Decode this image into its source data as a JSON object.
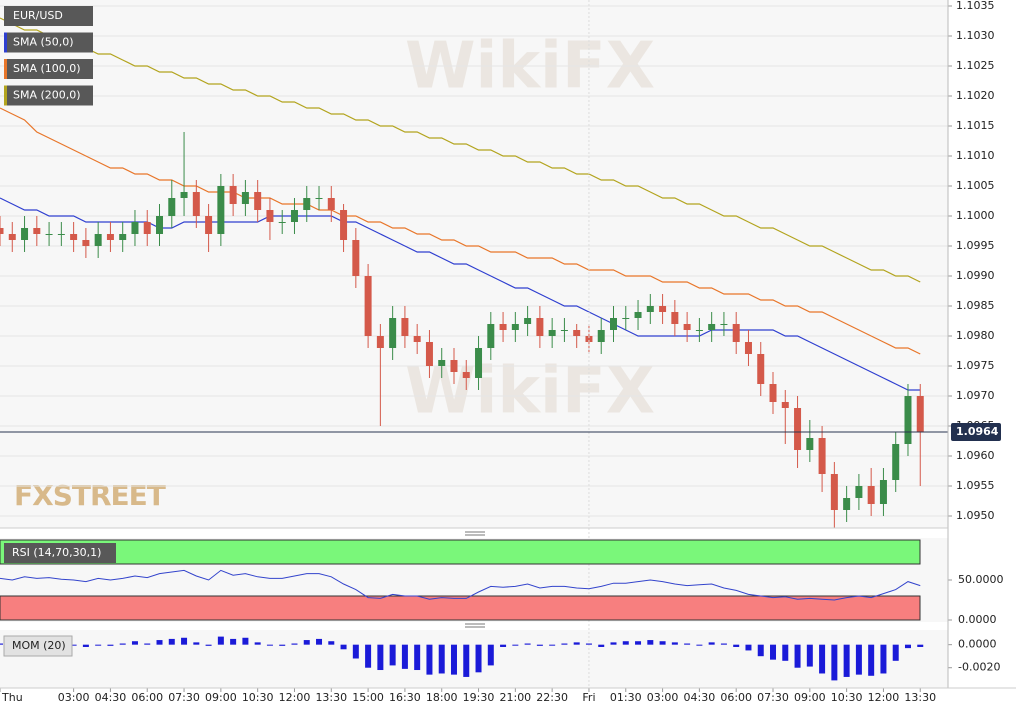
{
  "chart_data": {
    "type": "candlestick",
    "symbol": "EUR/USD",
    "categories": [
      "Thu",
      null,
      null,
      null,
      null,
      null,
      "03:00",
      null,
      null,
      "04:30",
      null,
      null,
      "06:00",
      null,
      null,
      "07:30",
      null,
      null,
      "09:00",
      null,
      null,
      "10:30",
      null,
      null,
      "12:00",
      null,
      null,
      "13:30",
      null,
      null,
      "15:00",
      null,
      null,
      "16:30",
      null,
      null,
      "18:00",
      null,
      null,
      "19:30",
      null,
      null,
      "21:00",
      null,
      null,
      "22:30",
      null,
      null,
      "Fri",
      null,
      null,
      "01:30",
      null,
      null,
      "03:00",
      null,
      null,
      "04:30",
      null,
      null,
      "06:00",
      null,
      null,
      "07:30",
      null,
      null,
      "09:00",
      null,
      null,
      "10:30",
      null,
      null,
      "12:00",
      null,
      null,
      "13:30"
    ],
    "open": [
      1.0998,
      1.0997,
      1.0996,
      1.0998,
      1.0997,
      1.0997,
      1.0997,
      1.0996,
      1.0995,
      1.0997,
      1.0996,
      1.0997,
      1.0999,
      1.0997,
      1.1,
      1.1003,
      1.1004,
      1.1,
      1.0997,
      1.1005,
      1.1002,
      1.1004,
      1.1001,
      1.0999,
      1.0999,
      1.1001,
      1.1003,
      1.1003,
      1.1001,
      1.0996,
      1.099,
      1.098,
      1.0978,
      1.0983,
      1.098,
      1.0979,
      1.0975,
      1.0976,
      1.0974,
      1.0973,
      1.0978,
      1.0982,
      1.0981,
      1.0982,
      1.0983,
      1.098,
      1.0981,
      1.0981,
      1.098,
      1.0979,
      1.0981,
      1.0983,
      1.0983,
      1.0984,
      1.0985,
      1.0984,
      1.0982,
      1.0981,
      1.0981,
      1.0982,
      1.0982,
      1.0979,
      1.0977,
      1.0972,
      1.0969,
      1.0968,
      1.0961,
      1.0963,
      1.0957,
      1.0951,
      1.0953,
      1.0955,
      1.0952,
      1.0956,
      1.0962,
      1.097
    ],
    "high": [
      1.1,
      1.0999,
      1.1,
      1.1,
      1.0999,
      1.0999,
      1.0999,
      1.0998,
      1.0999,
      1.0999,
      1.0999,
      1.1001,
      1.1001,
      1.1002,
      1.1006,
      1.1014,
      1.1006,
      1.1002,
      1.1007,
      1.1007,
      1.1006,
      1.1006,
      1.1003,
      1.1001,
      1.1003,
      1.1005,
      1.1005,
      1.1005,
      1.1002,
      1.0998,
      1.0992,
      1.0982,
      1.0985,
      1.0985,
      1.0982,
      1.0981,
      1.0978,
      1.0978,
      1.0976,
      1.098,
      1.0984,
      1.0984,
      1.0984,
      1.0985,
      1.0985,
      1.0983,
      1.0983,
      1.0982,
      1.0982,
      1.0983,
      1.0985,
      1.0985,
      1.0986,
      1.0987,
      1.0987,
      1.0986,
      1.0984,
      1.0983,
      1.0984,
      1.0984,
      1.0984,
      1.0981,
      1.0979,
      1.0974,
      1.0971,
      1.097,
      1.0966,
      1.0965,
      1.0959,
      1.0955,
      1.0957,
      1.0958,
      1.0958,
      1.0964,
      1.0972,
      1.0972
    ],
    "low": [
      1.0995,
      1.0994,
      1.0994,
      1.0995,
      1.0995,
      1.0995,
      1.0994,
      1.0993,
      1.0993,
      1.0994,
      1.0994,
      1.0995,
      1.0995,
      1.0995,
      1.0998,
      1.1,
      1.0998,
      1.0994,
      1.0995,
      1.1,
      1.1,
      1.0999,
      1.0996,
      1.0997,
      1.0997,
      1.0999,
      1.1001,
      1.0999,
      1.0994,
      1.0988,
      1.0978,
      1.0965,
      1.0976,
      1.0978,
      1.0977,
      1.0973,
      1.0973,
      1.0972,
      1.0971,
      1.0971,
      1.0976,
      1.0979,
      1.0979,
      1.098,
      1.0978,
      1.0978,
      1.0979,
      1.0978,
      1.0977,
      1.0977,
      1.0979,
      1.0981,
      1.0981,
      1.0982,
      1.0982,
      1.098,
      1.0979,
      1.0979,
      1.0979,
      1.098,
      1.0977,
      1.0975,
      1.097,
      1.0967,
      1.0962,
      1.0958,
      1.0959,
      1.0954,
      1.0948,
      1.0949,
      1.0951,
      1.095,
      1.095,
      1.0954,
      1.096,
      1.0955
    ],
    "close": [
      1.0997,
      1.0996,
      1.0998,
      1.0997,
      1.0997,
      1.0997,
      1.0996,
      1.0995,
      1.0997,
      1.0996,
      1.0997,
      1.0999,
      1.0997,
      1.1,
      1.1003,
      1.1004,
      1.1,
      1.0997,
      1.1005,
      1.1002,
      1.1004,
      1.1001,
      1.0999,
      1.0999,
      1.1001,
      1.1003,
      1.1003,
      1.1001,
      1.0996,
      1.099,
      1.098,
      1.0978,
      1.0983,
      1.098,
      1.0979,
      1.0975,
      1.0976,
      1.0974,
      1.0973,
      1.0978,
      1.0982,
      1.0981,
      1.0982,
      1.0983,
      1.098,
      1.0981,
      1.0981,
      1.098,
      1.0979,
      1.0981,
      1.0983,
      1.0983,
      1.0984,
      1.0985,
      1.0984,
      1.0982,
      1.0981,
      1.0981,
      1.0982,
      1.0982,
      1.0979,
      1.0977,
      1.0972,
      1.0969,
      1.0968,
      1.0961,
      1.0963,
      1.0957,
      1.0951,
      1.0953,
      1.0955,
      1.0952,
      1.0956,
      1.0962,
      1.097,
      1.0964
    ],
    "up_color": "#3b8c4a",
    "down_color": "#d4594a",
    "series": [
      {
        "name": "SMA (50,0)",
        "color": "#2f3fd0",
        "values": [
          1.1003,
          1.1002,
          1.1001,
          1.1001,
          1.1,
          1.1,
          1.1,
          1.0999,
          1.0999,
          1.0999,
          1.0999,
          1.0999,
          1.0999,
          1.0998,
          1.0998,
          1.0999,
          1.0999,
          1.0999,
          1.0999,
          1.0999,
          1.0999,
          1.0999,
          1.1,
          1.1,
          1.1,
          1.1,
          1.1,
          1.1,
          1.0999,
          1.0999,
          1.0998,
          1.0997,
          1.0996,
          1.0995,
          1.0994,
          1.0994,
          1.0993,
          1.0992,
          1.0992,
          1.0991,
          1.099,
          1.0989,
          1.0988,
          1.0988,
          1.0987,
          1.0986,
          1.0985,
          1.0985,
          1.0984,
          1.0983,
          1.0982,
          1.0981,
          1.098,
          1.098,
          1.098,
          1.098,
          1.098,
          1.098,
          1.0981,
          1.0981,
          1.0981,
          1.0981,
          1.0981,
          1.0981,
          1.098,
          1.098,
          1.0979,
          1.0978,
          1.0977,
          1.0976,
          1.0975,
          1.0974,
          1.0973,
          1.0972,
          1.0971,
          1.0971
        ]
      },
      {
        "name": "SMA (100,0)",
        "color": "#e8762a",
        "values": [
          1.1018,
          1.1017,
          1.1016,
          1.1014,
          1.1013,
          1.1012,
          1.1011,
          1.101,
          1.1009,
          1.1008,
          1.1008,
          1.1007,
          1.1007,
          1.1006,
          1.1006,
          1.1005,
          1.1005,
          1.1004,
          1.1004,
          1.1004,
          1.1003,
          1.1003,
          1.1003,
          1.1002,
          1.1002,
          1.1002,
          1.1001,
          1.1001,
          1.1,
          1.1,
          1.0999,
          1.0999,
          1.0998,
          1.0998,
          1.0997,
          1.0997,
          1.0996,
          1.0996,
          1.0995,
          1.0995,
          1.0994,
          1.0994,
          1.0994,
          1.0993,
          1.0993,
          1.0993,
          1.0992,
          1.0992,
          1.0991,
          1.0991,
          1.0991,
          1.099,
          1.099,
          1.099,
          1.0989,
          1.0989,
          1.0989,
          1.0988,
          1.0988,
          1.0987,
          1.0987,
          1.0987,
          1.0986,
          1.0986,
          1.0985,
          1.0985,
          1.0984,
          1.0984,
          1.0983,
          1.0982,
          1.0981,
          1.098,
          1.0979,
          1.0978,
          1.0978,
          1.0977
        ]
      },
      {
        "name": "SMA (200,0)",
        "color": "#b3a41e",
        "values": [
          1.1033,
          1.1032,
          1.1031,
          1.1031,
          1.103,
          1.1029,
          1.1029,
          1.1028,
          1.1027,
          1.1027,
          1.1026,
          1.1025,
          1.1025,
          1.1024,
          1.1024,
          1.1023,
          1.1023,
          1.1022,
          1.1022,
          1.1021,
          1.1021,
          1.102,
          1.102,
          1.1019,
          1.1019,
          1.1018,
          1.1018,
          1.1017,
          1.1017,
          1.1016,
          1.1016,
          1.1015,
          1.1015,
          1.1014,
          1.1014,
          1.1013,
          1.1013,
          1.1012,
          1.1012,
          1.1011,
          1.1011,
          1.101,
          1.101,
          1.1009,
          1.1009,
          1.1008,
          1.1008,
          1.1007,
          1.1007,
          1.1006,
          1.1006,
          1.1005,
          1.1005,
          1.1004,
          1.1003,
          1.1003,
          1.1002,
          1.1002,
          1.1001,
          1.1,
          1.1,
          1.0999,
          1.0998,
          1.0998,
          1.0997,
          1.0996,
          1.0995,
          1.0995,
          1.0994,
          1.0993,
          1.0992,
          1.0991,
          1.0991,
          1.099,
          1.099,
          1.0989
        ]
      }
    ],
    "ylim": [
      1.0948,
      1.1036
    ],
    "yticks": [
      {
        "value": 1.095,
        "label": "1.0950"
      },
      1.0955,
      {
        "value": 1.096,
        "label": "1.0960"
      },
      1.0965,
      {
        "value": 1.097,
        "label": "1.0970"
      },
      1.0975,
      {
        "value": 1.098,
        "label": "1.0980"
      },
      1.0985,
      {
        "value": 1.099,
        "label": "1.0990"
      },
      1.0995,
      {
        "value": 1.1,
        "label": "1.1000"
      },
      1.1005,
      {
        "value": 1.101,
        "label": "1.1010"
      },
      1.1015,
      {
        "value": 1.102,
        "label": "1.1020"
      },
      1.1025,
      {
        "value": 1.103,
        "label": "1.1030"
      },
      1.1035
    ],
    "grid": true,
    "last_price": 1.0964,
    "watermarks": [
      "WikiFX",
      "FXSTREET"
    ],
    "rsi": {
      "name": "RSI (14,70,30,1)",
      "overbought": 70,
      "oversold": 30,
      "color": "#3344cc",
      "values": [
        52,
        50,
        54,
        52,
        53,
        51,
        50,
        48,
        52,
        50,
        52,
        55,
        53,
        58,
        60,
        62,
        55,
        50,
        62,
        56,
        58,
        54,
        52,
        52,
        55,
        58,
        58,
        54,
        45,
        38,
        28,
        27,
        32,
        30,
        30,
        26,
        28,
        27,
        27,
        35,
        42,
        41,
        42,
        45,
        40,
        42,
        42,
        40,
        39,
        42,
        46,
        46,
        48,
        50,
        48,
        45,
        43,
        44,
        45,
        40,
        37,
        32,
        30,
        28,
        29,
        26,
        27,
        26,
        25,
        28,
        30,
        28,
        33,
        38,
        48,
        43
      ],
      "ylim": [
        0,
        100
      ],
      "yticks": [
        {
          "value": 50,
          "label": "50.0000"
        },
        {
          "value": 0,
          "label": "0.0000"
        }
      ]
    },
    "momentum": {
      "name": "MOM (20)",
      "color": "#1a1ad8",
      "values": [
        0.0001,
        0.0,
        -0.0001,
        0.0,
        -0.0001,
        -0.0001,
        0.0,
        -0.0002,
        0.0,
        -0.0001,
        0.0001,
        0.0003,
        0.0001,
        0.0004,
        0.0005,
        0.0006,
        0.0002,
        -0.0001,
        0.0007,
        0.0005,
        0.0006,
        0.0002,
        0.0,
        -0.0001,
        0.0001,
        0.0004,
        0.0005,
        0.0003,
        -0.0004,
        -0.0012,
        -0.002,
        -0.0022,
        -0.0018,
        -0.0021,
        -0.0022,
        -0.0026,
        -0.0025,
        -0.0026,
        -0.0028,
        -0.0024,
        -0.0018,
        -0.0002,
        0.0,
        0.0001,
        -0.0001,
        0.0,
        0.0001,
        0.0002,
        0.0001,
        -0.0002,
        0.0002,
        0.0003,
        0.0003,
        0.0004,
        0.0003,
        0.0002,
        0.0001,
        0.0,
        0.0002,
        0.0001,
        -0.0002,
        -0.0005,
        -0.001,
        -0.0013,
        -0.0014,
        -0.002,
        -0.0019,
        -0.0025,
        -0.0031,
        -0.0028,
        -0.0026,
        -0.0027,
        -0.0025,
        -0.0014,
        -0.0003,
        -0.0002
      ],
      "ylim": [
        -0.0035,
        0.0011
      ],
      "yticks": [
        {
          "value": 0,
          "label": "0.0000"
        },
        {
          "value": -0.002,
          "label": "-0.0020"
        }
      ]
    }
  }
}
